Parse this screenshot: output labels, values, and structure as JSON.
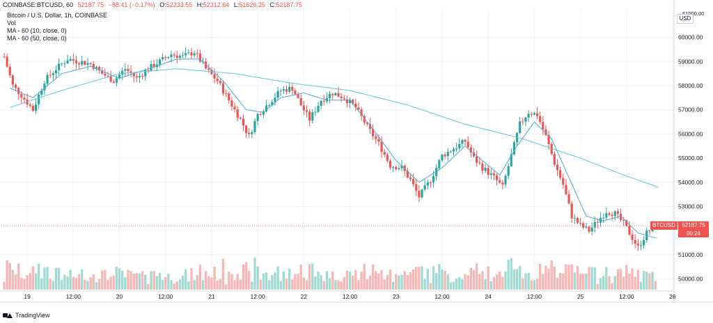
{
  "header": {
    "symbol": "COINBASE:BTCUSD, 60",
    "last": "52187.75",
    "change": "−88.41 (−0.17%)",
    "o_label": "O:",
    "o": "52233.55",
    "h_label": "H:",
    "h": "52312.64",
    "l_label": "L:",
    "l": "51626.25",
    "c_label": "C:",
    "c": "52187.75"
  },
  "indicators": [
    "Bitcoin / U.S. Dollar, 1h, COINBASE",
    "Vol",
    "MA - 60 (10, close, 0)",
    "MA - 60 (50, close, 0)"
  ],
  "axis_currency": "USD",
  "price_tag": {
    "symbol": "BTCUSD",
    "value": "52187.75",
    "countdown": "00:24"
  },
  "footer": {
    "brand": "TradingView"
  },
  "colors": {
    "up": "#26a69a",
    "down": "#ef5350",
    "vol_up": "#8fd3c9",
    "vol_down": "#f7a9a7",
    "ma_fast": "#4aa8d8",
    "ma_slow": "#5fc8d6",
    "grid": "#f0f3fa"
  },
  "chart_data": {
    "type": "candlestick",
    "y_axis": {
      "min": 49500,
      "max": 61200,
      "ticks": [
        50000,
        51000,
        52000,
        53000,
        54000,
        55000,
        56000,
        57000,
        58000,
        59000,
        60000
      ],
      "tick_labels": [
        "50000.00",
        "51000.00",
        "52000.00",
        "53000.00",
        "54000.00",
        "55000.00",
        "56000.00",
        "57000.00",
        "58000.00",
        "59000.00",
        "60000.00"
      ],
      "top_label": "61000.00"
    },
    "x_axis": {
      "start_index": 0,
      "end_index": 218,
      "labels": [
        {
          "i": 8,
          "label": "19"
        },
        {
          "i": 24,
          "label": "12:00"
        },
        {
          "i": 40,
          "label": "20"
        },
        {
          "i": 56,
          "label": "12:00"
        },
        {
          "i": 72,
          "label": "21"
        },
        {
          "i": 88,
          "label": "12:00"
        },
        {
          "i": 104,
          "label": "22"
        },
        {
          "i": 120,
          "label": "12:00"
        },
        {
          "i": 136,
          "label": "23"
        },
        {
          "i": 152,
          "label": "12:00"
        },
        {
          "i": 168,
          "label": "24"
        },
        {
          "i": 184,
          "label": "12:00"
        },
        {
          "i": 200,
          "label": "25"
        },
        {
          "i": 216,
          "label": "12:00"
        },
        {
          "i": 232,
          "label": "26"
        }
      ]
    },
    "anchors": [
      [
        0,
        59200
      ],
      [
        3,
        58000
      ],
      [
        6,
        57600
      ],
      [
        10,
        57000
      ],
      [
        14,
        58200
      ],
      [
        18,
        58700
      ],
      [
        22,
        59100
      ],
      [
        26,
        59000
      ],
      [
        30,
        58900
      ],
      [
        34,
        58500
      ],
      [
        38,
        58200
      ],
      [
        42,
        58700
      ],
      [
        46,
        58300
      ],
      [
        50,
        58700
      ],
      [
        54,
        59000
      ],
      [
        58,
        59300
      ],
      [
        62,
        59200
      ],
      [
        66,
        59400
      ],
      [
        70,
        58700
      ],
      [
        74,
        58200
      ],
      [
        78,
        57400
      ],
      [
        82,
        56600
      ],
      [
        85,
        55900
      ],
      [
        88,
        56800
      ],
      [
        92,
        57300
      ],
      [
        96,
        57800
      ],
      [
        100,
        57900
      ],
      [
        103,
        57200
      ],
      [
        106,
        56600
      ],
      [
        110,
        57400
      ],
      [
        114,
        57700
      ],
      [
        118,
        57500
      ],
      [
        122,
        57100
      ],
      [
        126,
        56300
      ],
      [
        130,
        55600
      ],
      [
        134,
        54700
      ],
      [
        138,
        54600
      ],
      [
        141,
        54100
      ],
      [
        144,
        53400
      ],
      [
        148,
        54100
      ],
      [
        152,
        55100
      ],
      [
        156,
        55400
      ],
      [
        160,
        55700
      ],
      [
        163,
        55000
      ],
      [
        166,
        54600
      ],
      [
        170,
        54200
      ],
      [
        173,
        53800
      ],
      [
        176,
        55100
      ],
      [
        179,
        56400
      ],
      [
        182,
        56900
      ],
      [
        185,
        56800
      ],
      [
        188,
        55900
      ],
      [
        191,
        54800
      ],
      [
        194,
        53900
      ],
      [
        197,
        52600
      ],
      [
        200,
        52200
      ],
      [
        203,
        52000
      ],
      [
        206,
        52400
      ],
      [
        209,
        52800
      ],
      [
        212,
        52700
      ],
      [
        215,
        52300
      ],
      [
        218,
        51700
      ],
      [
        220,
        51300
      ],
      [
        223,
        51900
      ],
      [
        226,
        52190
      ]
    ],
    "ma_fast_anchors": [
      [
        2,
        57900
      ],
      [
        10,
        57500
      ],
      [
        20,
        58500
      ],
      [
        30,
        58800
      ],
      [
        40,
        58300
      ],
      [
        50,
        58700
      ],
      [
        60,
        59100
      ],
      [
        68,
        59100
      ],
      [
        76,
        58200
      ],
      [
        84,
        57000
      ],
      [
        90,
        56900
      ],
      [
        96,
        57500
      ],
      [
        104,
        57700
      ],
      [
        112,
        57400
      ],
      [
        120,
        57400
      ],
      [
        128,
        56200
      ],
      [
        136,
        54900
      ],
      [
        144,
        54000
      ],
      [
        152,
        54600
      ],
      [
        160,
        55500
      ],
      [
        166,
        54900
      ],
      [
        172,
        54300
      ],
      [
        178,
        55500
      ],
      [
        184,
        56500
      ],
      [
        190,
        55800
      ],
      [
        196,
        54200
      ],
      [
        202,
        52600
      ],
      [
        208,
        52400
      ],
      [
        214,
        52600
      ],
      [
        220,
        51900
      ],
      [
        226,
        51700
      ]
    ],
    "ma_slow_anchors": [
      [
        2,
        57100
      ],
      [
        20,
        57800
      ],
      [
        40,
        58500
      ],
      [
        60,
        58700
      ],
      [
        80,
        58500
      ],
      [
        100,
        58100
      ],
      [
        120,
        57800
      ],
      [
        140,
        57200
      ],
      [
        160,
        56400
      ],
      [
        180,
        55800
      ],
      [
        200,
        55000
      ],
      [
        215,
        54300
      ],
      [
        227,
        53800
      ]
    ],
    "volume_scale_max": 100
  }
}
